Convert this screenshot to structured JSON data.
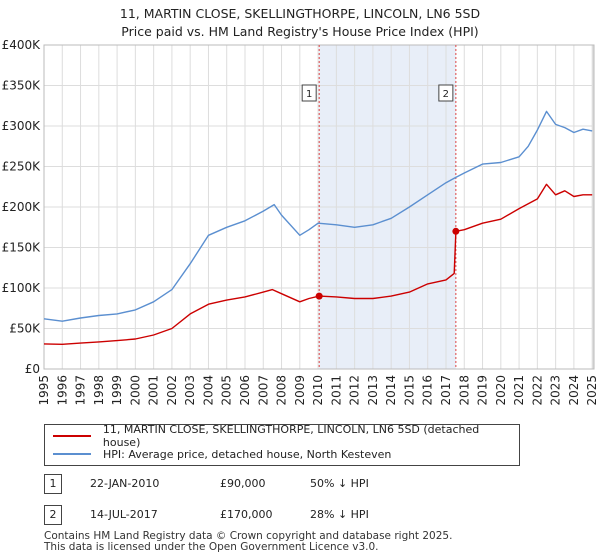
{
  "title": {
    "line1": "11, MARTIN CLOSE, SKELLINGTHORPE, LINCOLN, LN6 5SD",
    "line2": "Price paid vs. HM Land Registry's House Price Index (HPI)"
  },
  "colors": {
    "price_line": "#cc0000",
    "hpi_line": "#5b8fd0",
    "shade": "#e8eef8",
    "marker_line": "#dd4444"
  },
  "legend": {
    "price_label": "11, MARTIN CLOSE, SKELLINGTHORPE, LINCOLN, LN6 5SD (detached house)",
    "hpi_label": "HPI: Average price, detached house, North Kesteven"
  },
  "markers": [
    {
      "num": "1",
      "date": "22-JAN-2010",
      "price": "£90,000",
      "hpi": "50% ↓ HPI"
    },
    {
      "num": "2",
      "date": "14-JUL-2017",
      "price": "£170,000",
      "hpi": "28% ↓ HPI"
    }
  ],
  "footer": {
    "line1": "Contains HM Land Registry data © Crown copyright and database right 2025.",
    "line2": "This data is licensed under the Open Government Licence v3.0."
  },
  "chart_data": {
    "type": "line",
    "title": "11, MARTIN CLOSE, SKELLINGTHORPE, LINCOLN, LN6 5SD",
    "subtitle": "Price paid vs. HM Land Registry's House Price Index (HPI)",
    "xlabel": "",
    "ylabel": "",
    "xlim": [
      1995,
      2025.1
    ],
    "ylim": [
      0,
      400000
    ],
    "grid": true,
    "legend_position": "bottom",
    "x_ticks": [
      1995,
      1996,
      1997,
      1998,
      1999,
      2000,
      2001,
      2002,
      2003,
      2004,
      2005,
      2006,
      2007,
      2008,
      2009,
      2010,
      2011,
      2012,
      2013,
      2014,
      2015,
      2016,
      2017,
      2018,
      2019,
      2020,
      2021,
      2022,
      2023,
      2024,
      2025
    ],
    "y_ticks": [
      {
        "value": 0,
        "label": "£0"
      },
      {
        "value": 50000,
        "label": "£50K"
      },
      {
        "value": 100000,
        "label": "£100K"
      },
      {
        "value": 150000,
        "label": "£150K"
      },
      {
        "value": 200000,
        "label": "£200K"
      },
      {
        "value": 250000,
        "label": "£250K"
      },
      {
        "value": 300000,
        "label": "£300K"
      },
      {
        "value": 350000,
        "label": "£350K"
      },
      {
        "value": 400000,
        "label": "£400K"
      }
    ],
    "shaded_region": [
      2010.06,
      2017.54
    ],
    "sale_markers": [
      {
        "label": "1",
        "x": 2010.06,
        "y": 90000
      },
      {
        "label": "2",
        "x": 2017.54,
        "y": 170000
      }
    ],
    "series": [
      {
        "name": "11, MARTIN CLOSE, SKELLINGTHORPE, LINCOLN, LN6 5SD (detached house)",
        "points": [
          [
            1995.0,
            31000
          ],
          [
            1996.0,
            30500
          ],
          [
            1997.0,
            32000
          ],
          [
            1998.0,
            33500
          ],
          [
            1999.0,
            35000
          ],
          [
            2000.0,
            37000
          ],
          [
            2001.0,
            42000
          ],
          [
            2002.0,
            50000
          ],
          [
            2003.0,
            68000
          ],
          [
            2004.0,
            80000
          ],
          [
            2005.0,
            85000
          ],
          [
            2006.0,
            89000
          ],
          [
            2007.0,
            95000
          ],
          [
            2007.5,
            98000
          ],
          [
            2008.0,
            93000
          ],
          [
            2009.0,
            83000
          ],
          [
            2009.5,
            87000
          ],
          [
            2010.06,
            90000
          ],
          [
            2011.0,
            89000
          ],
          [
            2012.0,
            87000
          ],
          [
            2013.0,
            87000
          ],
          [
            2014.0,
            90000
          ],
          [
            2015.0,
            95000
          ],
          [
            2016.0,
            105000
          ],
          [
            2017.0,
            110000
          ],
          [
            2017.45,
            118000
          ],
          [
            2017.54,
            170000
          ],
          [
            2018.0,
            172000
          ],
          [
            2019.0,
            180000
          ],
          [
            2020.0,
            185000
          ],
          [
            2021.0,
            198000
          ],
          [
            2022.0,
            210000
          ],
          [
            2022.5,
            228000
          ],
          [
            2023.0,
            215000
          ],
          [
            2023.5,
            220000
          ],
          [
            2024.0,
            213000
          ],
          [
            2024.5,
            215000
          ],
          [
            2025.0,
            215000
          ]
        ]
      },
      {
        "name": "HPI: Average price, detached house, North Kesteven",
        "points": [
          [
            1995.0,
            62000
          ],
          [
            1996.0,
            59000
          ],
          [
            1997.0,
            63000
          ],
          [
            1998.0,
            66000
          ],
          [
            1999.0,
            68000
          ],
          [
            2000.0,
            73000
          ],
          [
            2001.0,
            83000
          ],
          [
            2002.0,
            98000
          ],
          [
            2003.0,
            130000
          ],
          [
            2004.0,
            165000
          ],
          [
            2005.0,
            175000
          ],
          [
            2006.0,
            183000
          ],
          [
            2007.0,
            195000
          ],
          [
            2007.6,
            203000
          ],
          [
            2008.0,
            190000
          ],
          [
            2009.0,
            165000
          ],
          [
            2009.5,
            172000
          ],
          [
            2010.0,
            180000
          ],
          [
            2011.0,
            178000
          ],
          [
            2012.0,
            175000
          ],
          [
            2013.0,
            178000
          ],
          [
            2014.0,
            186000
          ],
          [
            2015.0,
            200000
          ],
          [
            2016.0,
            215000
          ],
          [
            2017.0,
            230000
          ],
          [
            2017.5,
            236000
          ],
          [
            2018.0,
            242000
          ],
          [
            2019.0,
            253000
          ],
          [
            2020.0,
            255000
          ],
          [
            2021.0,
            262000
          ],
          [
            2021.5,
            275000
          ],
          [
            2022.0,
            295000
          ],
          [
            2022.5,
            318000
          ],
          [
            2023.0,
            302000
          ],
          [
            2023.5,
            298000
          ],
          [
            2024.0,
            292000
          ],
          [
            2024.5,
            296000
          ],
          [
            2025.0,
            294000
          ]
        ]
      }
    ]
  }
}
